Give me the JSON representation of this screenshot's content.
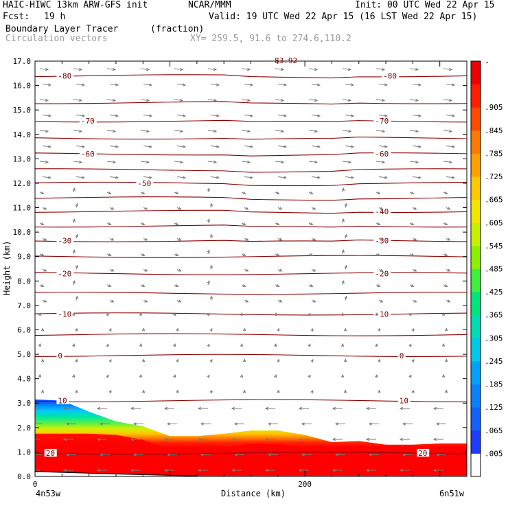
{
  "header": {
    "model": "HAIC-HIWC 13km ARW-GFS init",
    "org": "NCAR/MMM",
    "init": "Init: 00 UTC Wed 22 Apr 15",
    "fcst_label": "Fcst:",
    "fcst_value": "19 h",
    "valid": "Valid: 19 UTC Wed 22 Apr 15 (16 LST Wed 22 Apr 15)",
    "field": "Boundary Layer Tracer",
    "field_units": "(fraction)",
    "overlay": "Circulation vectors",
    "xy": "XY= 259.5, 91.6 to 274.6,110.2"
  },
  "chart_data": {
    "type": "heatmap",
    "ylabel": "Height (km)",
    "xlabel": "Distance (km)",
    "ylim": [
      0,
      17
    ],
    "xlim": [
      0,
      320
    ],
    "y_ticks": [
      "0.0",
      "1.0",
      "2.0",
      "3.0",
      "4.0",
      "5.0",
      "6.0",
      "7.0",
      "8.0",
      "9.0",
      "10.0",
      "11.0",
      "12.0",
      "13.0",
      "14.0",
      "15.0",
      "16.0",
      "17.0"
    ],
    "x_ticks": [
      {
        "value": 0,
        "label": "0"
      },
      {
        "value": 200,
        "label": "200"
      }
    ],
    "x_end_labels": {
      "left": "4n53w",
      "right": "6n51w"
    },
    "tracer_top_km": [
      {
        "x": 0,
        "top": 3.15
      },
      {
        "x": 20,
        "top": 3.1
      },
      {
        "x": 40,
        "top": 2.65
      },
      {
        "x": 60,
        "top": 2.25
      },
      {
        "x": 80,
        "top": 2.05
      },
      {
        "x": 100,
        "top": 1.65
      },
      {
        "x": 120,
        "top": 1.65
      },
      {
        "x": 140,
        "top": 1.75
      },
      {
        "x": 160,
        "top": 1.88
      },
      {
        "x": 180,
        "top": 1.88
      },
      {
        "x": 200,
        "top": 1.7
      },
      {
        "x": 220,
        "top": 1.4
      },
      {
        "x": 240,
        "top": 1.45
      },
      {
        "x": 260,
        "top": 1.3
      },
      {
        "x": 280,
        "top": 1.3
      },
      {
        "x": 300,
        "top": 1.35
      },
      {
        "x": 320,
        "top": 1.35
      }
    ],
    "temperature_contours": [
      {
        "height_km": 0.95,
        "labels": [
          {
            "x": 8,
            "text": "20"
          },
          {
            "x": 284,
            "text": "20"
          }
        ]
      },
      {
        "height_km": 3.1,
        "labels": [
          {
            "x": 17,
            "text": "10"
          },
          {
            "x": 270,
            "text": "10"
          }
        ]
      },
      {
        "height_km": 4.95,
        "labels": [
          {
            "x": 17,
            "text": "0"
          },
          {
            "x": 270,
            "text": "0"
          }
        ]
      },
      {
        "height_km": 5.8,
        "labels": []
      },
      {
        "height_km": 6.65,
        "labels": [
          {
            "x": 17,
            "text": "-10"
          },
          {
            "x": 252,
            "text": "-10"
          }
        ]
      },
      {
        "height_km": 7.5,
        "labels": []
      },
      {
        "height_km": 8.3,
        "labels": [
          {
            "x": 17,
            "text": "-20"
          },
          {
            "x": 252,
            "text": "-20"
          }
        ]
      },
      {
        "height_km": 9.0,
        "labels": []
      },
      {
        "height_km": 9.65,
        "labels": [
          {
            "x": 17,
            "text": "-30"
          },
          {
            "x": 252,
            "text": "-30"
          }
        ]
      },
      {
        "height_km": 10.25,
        "labels": []
      },
      {
        "height_km": 10.85,
        "labels": [
          {
            "x": 252,
            "text": "-40"
          }
        ]
      },
      {
        "height_km": 11.4,
        "labels": []
      },
      {
        "height_km": 12.0,
        "labels": [
          {
            "x": 76,
            "text": "-50"
          }
        ]
      },
      {
        "height_km": 12.55,
        "labels": []
      },
      {
        "height_km": 13.2,
        "labels": [
          {
            "x": 34,
            "text": "-60"
          },
          {
            "x": 252,
            "text": "-60"
          }
        ]
      },
      {
        "height_km": 13.85,
        "labels": []
      },
      {
        "height_km": 14.55,
        "labels": [
          {
            "x": 34,
            "text": "-70"
          },
          {
            "x": 252,
            "text": "-70"
          }
        ]
      },
      {
        "height_km": 15.3,
        "labels": []
      },
      {
        "height_km": 16.4,
        "labels": [
          {
            "x": 17,
            "text": "-80"
          },
          {
            "x": 258,
            "text": "-80"
          }
        ]
      }
    ],
    "top_label": "83.92",
    "colorbar": {
      "labels": [
        ".005",
        ".065",
        ".125",
        ".185",
        ".245",
        ".305",
        ".365",
        ".425",
        ".485",
        ".545",
        ".605",
        ".665",
        ".725",
        ".785",
        ".845",
        ".905"
      ],
      "top_label": "-",
      "colors": [
        "#ffffff",
        "#1e3cff",
        "#1460ff",
        "#0a82ff",
        "#00a0ff",
        "#00c8e6",
        "#00dcb4",
        "#00e678",
        "#3cf03c",
        "#8cf000",
        "#c8f000",
        "#f0e600",
        "#ffc800",
        "#ffa000",
        "#ff7800",
        "#ff4b00",
        "#ff1e00",
        "#ee0000"
      ]
    },
    "vectors": "gray circulation arrows across domain"
  }
}
